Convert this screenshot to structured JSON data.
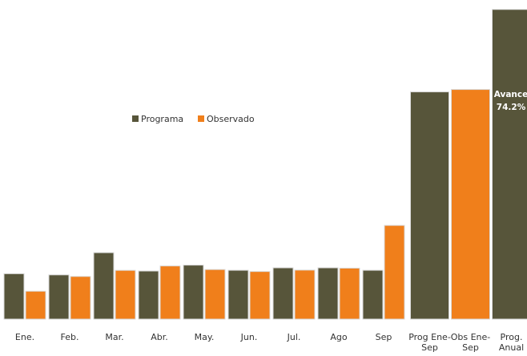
{
  "chart_data": {
    "type": "bar",
    "categories": [
      "Ene.",
      "Feb.",
      "Mar.",
      "Abr.",
      "May.",
      "Jun.",
      "Jul.",
      "Ago",
      "Sep",
      "Prog Ene-Sep",
      "Obs Ene-Sep",
      "Prog. Anual"
    ],
    "series": [
      {
        "name": "Programa",
        "color": "#57553a",
        "values": [
          97.8,
          95.3,
          143.1,
          103.6,
          116.3,
          105.2,
          110.5,
          110.5,
          105.2,
          null,
          null,
          null
        ],
        "value_labels": [
          "97.8",
          "95.3",
          "143.1",
          "103.6",
          "116.3",
          "105.2",
          "110.5",
          "110.5",
          "105.2",
          null,
          null,
          null
        ]
      },
      {
        "name": "Observado",
        "color": "#f07f1b",
        "values": [
          60.1,
          91.9,
          105.0,
          114.5,
          106.8,
          102.5,
          105.6,
          109.8,
          201.8,
          null,
          null,
          null
        ],
        "value_labels": [
          "60.1",
          "91.9",
          "105.0",
          "114.5",
          "106.8",
          "102.5",
          "105.6",
          "109.8",
          "201.8",
          null,
          null,
          null
        ]
      },
      {
        "color": "#57553a",
        "axis": "y2",
        "values": [
          null,
          null,
          null,
          null,
          null,
          null,
          null,
          null,
          null,
          987.5,
          null,
          1345.8
        ],
        "value_labels": [
          null,
          null,
          null,
          null,
          null,
          null,
          null,
          null,
          null,
          "987.5",
          null,
          "1,345.8"
        ]
      },
      {
        "color": "#f07f1b",
        "axis": "y2",
        "values": [
          null,
          null,
          null,
          null,
          null,
          null,
          null,
          null,
          null,
          null,
          998.0,
          null
        ],
        "value_labels": [
          null,
          null,
          null,
          null,
          null,
          null,
          null,
          null,
          null,
          null,
          "998.0",
          null
        ]
      }
    ],
    "ylim": [
      0,
      670
    ],
    "y2lim": [
      0,
      1352
    ],
    "annotations": [
      "Avance",
      "74.2%"
    ]
  }
}
